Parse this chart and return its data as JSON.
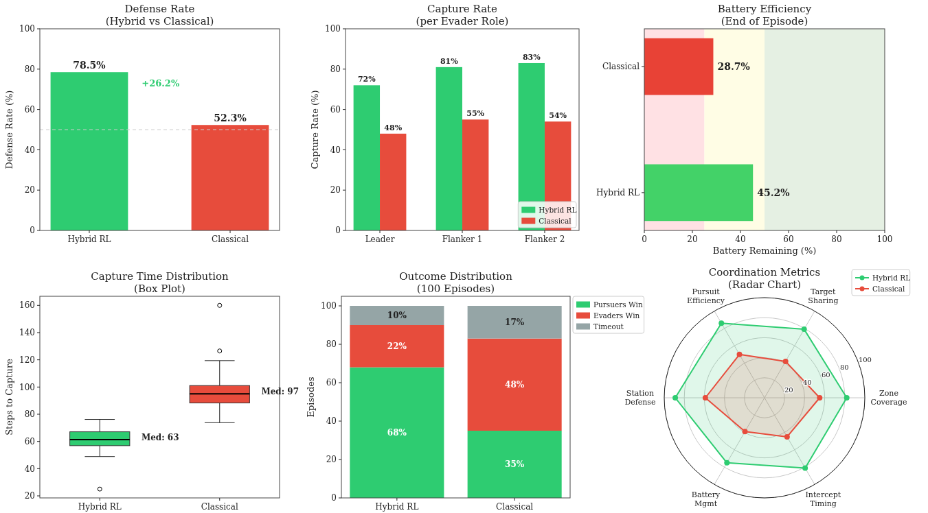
{
  "chart_data": [
    {
      "type": "bar",
      "title": "Defense Rate\n(Hybrid vs Classical)",
      "ylabel": "Defense Rate (%)",
      "categories": [
        "Hybrid RL",
        "Classical"
      ],
      "values": [
        78.5,
        52.3
      ],
      "colors": [
        "#2ecc71",
        "#e74c3c"
      ],
      "value_labels": [
        "78.5%",
        "52.3%"
      ],
      "ylim": [
        0,
        100
      ],
      "yticks": [
        0,
        20,
        40,
        60,
        80,
        100
      ],
      "ref_lines": [
        {
          "axis": "y",
          "value": 50,
          "color": "#cccccc",
          "line_style": "dashed"
        }
      ],
      "annotations": [
        "+26.2%"
      ]
    },
    {
      "type": "bar",
      "title": "Capture Rate\n(per Evader Role)",
      "ylabel": "Capture Rate (%)",
      "categories": [
        "Leader",
        "Flanker 1",
        "Flanker 2"
      ],
      "series": [
        {
          "name": "Hybrid RL",
          "color": "#2ecc71",
          "values": [
            72,
            81,
            83
          ],
          "value_labels": [
            "72%",
            "81%",
            "83%"
          ]
        },
        {
          "name": "Classical",
          "color": "#e74c3c",
          "values": [
            48,
            55,
            54
          ],
          "value_labels": [
            "48%",
            "55%",
            "54%"
          ]
        }
      ],
      "ylim": [
        0,
        100
      ],
      "yticks": [
        0,
        20,
        40,
        60,
        80,
        100
      ],
      "legend": "bottom right"
    },
    {
      "type": "bar",
      "orientation": "horizontal",
      "title": "Battery Efficiency\n(End of Episode)",
      "xlabel": "Battery Remaining (%)",
      "categories": [
        "Classical",
        "Hybrid RL"
      ],
      "values": [
        28.7,
        45.2
      ],
      "colors": [
        "#e84236",
        "#43d268"
      ],
      "value_labels": [
        "28.7%",
        "45.2%"
      ],
      "xlim": [
        0,
        100
      ],
      "xticks": [
        0,
        20,
        40,
        60,
        80,
        100
      ],
      "bands": [
        {
          "axis": "x",
          "from": 0,
          "to": 25,
          "color": "#ffe1e4"
        },
        {
          "axis": "x",
          "from": 25,
          "to": 50,
          "color": "#fffde5"
        },
        {
          "axis": "x",
          "from": 50,
          "to": 100,
          "color": "#e5f0e3"
        }
      ]
    },
    {
      "type": "box",
      "title": "Capture Time Distribution\n(Box Plot)",
      "ylabel": "Steps to Capture",
      "categories": [
        "Hybrid RL",
        "Classical"
      ],
      "colors": [
        "#2ecc71",
        "#e74c3c"
      ],
      "boxes": [
        {
          "low": 48.9,
          "q1": 56.9,
          "median": 61.4,
          "q3": 67.1,
          "high": 76.2,
          "outliers": [
            25
          ]
        },
        {
          "low": 73.8,
          "q1": 88.3,
          "median": 95,
          "q3": 101.1,
          "high": 119.4,
          "outliers": [
            126.5,
            160
          ]
        }
      ],
      "ylim": [
        18.5,
        166.7
      ],
      "yticks": [
        20,
        40,
        60,
        80,
        100,
        120,
        140,
        160
      ],
      "annotations": [
        "Med: 63",
        "Med: 97"
      ]
    },
    {
      "type": "bar",
      "stacked": true,
      "title": "Outcome Distribution\n(100 Episodes)",
      "ylabel": "Episodes",
      "categories": [
        "Hybrid RL",
        "Classical"
      ],
      "series": [
        {
          "name": "Pursuers Win",
          "color": "#2ecc71",
          "values": [
            68,
            35
          ],
          "value_labels": [
            "68%",
            "35%"
          ]
        },
        {
          "name": "Evaders Win",
          "color": "#e74c3c",
          "values": [
            22,
            48
          ],
          "value_labels": [
            "22%",
            "48%"
          ]
        },
        {
          "name": "Timeout",
          "color": "#95a5a6",
          "values": [
            10,
            17
          ],
          "value_labels": [
            "10%",
            "17%"
          ]
        }
      ],
      "ylim": [
        0,
        105
      ],
      "yticks": [
        0,
        20,
        40,
        60,
        80,
        100
      ],
      "legend": "right"
    },
    {
      "type": "radar",
      "title": "Coordination Metrics\n(Radar Chart)",
      "categories": [
        "Target Sharing",
        "Zone Coverage",
        "Intercept Timing",
        "Battery Mgmt",
        "Station Defense",
        "Pursuit Efficiency"
      ],
      "series": [
        {
          "name": "Hybrid RL",
          "color": "#2ecc71",
          "values": [
            79,
            82,
            81,
            75,
            89,
            86
          ]
        },
        {
          "name": "Classical",
          "color": "#e74c3c",
          "values": [
            42,
            55,
            45,
            39,
            59,
            50
          ]
        }
      ],
      "ylim": [
        0,
        100
      ],
      "yticks": [
        20,
        40,
        60,
        80,
        100
      ],
      "grid": true,
      "marker": "circle",
      "legend": "top right"
    }
  ]
}
